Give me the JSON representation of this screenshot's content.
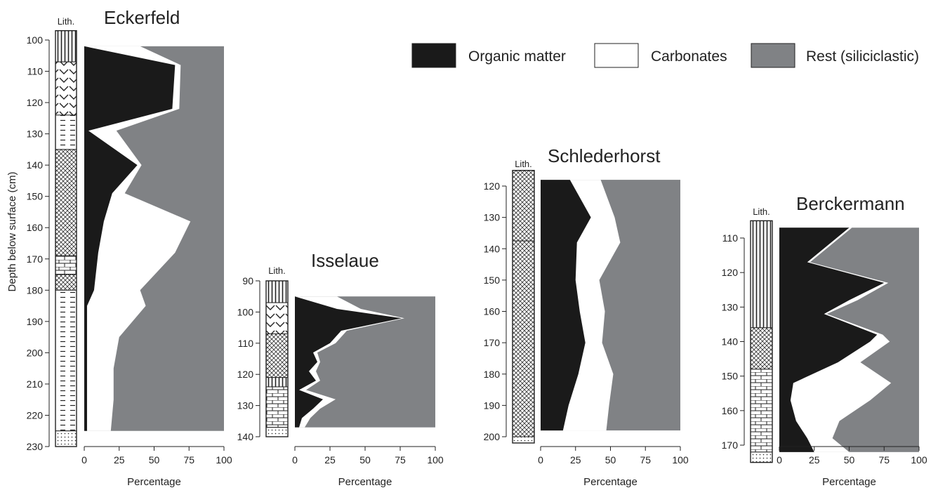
{
  "legend": {
    "items": [
      {
        "label": "Organic matter",
        "color": "#1a1a1a"
      },
      {
        "label": "Carbonates",
        "color": "#ffffff"
      },
      {
        "label": "Rest (siliciclastic)",
        "color": "#808285"
      }
    ]
  },
  "colors": {
    "organic": "#1a1a1a",
    "carbonates": "#ffffff",
    "rest": "#808285",
    "axis": "#222222"
  },
  "chart_data": [
    {
      "type": "area",
      "title": "Eckerfeld",
      "ylabel": "Depth below surface (cm)",
      "xlabel": "Percentage",
      "lith_label": "Lith.",
      "xlim": [
        0,
        100
      ],
      "ylim": [
        230,
        100
      ],
      "xticks": [
        0,
        25,
        50,
        75,
        100
      ],
      "yticks": [
        100,
        110,
        120,
        130,
        140,
        150,
        160,
        170,
        180,
        190,
        200,
        210,
        220,
        230
      ],
      "depth": [
        102,
        108,
        122,
        129,
        140,
        149,
        158,
        168,
        180,
        185,
        195,
        205,
        215,
        225
      ],
      "organic": [
        0,
        65,
        63,
        3,
        38,
        20,
        14,
        10,
        7,
        2,
        2,
        2,
        2,
        2
      ],
      "organic_plus_carbonates": [
        40,
        69,
        68,
        23,
        41,
        29,
        76,
        65,
        40,
        44,
        25,
        21,
        21,
        19
      ],
      "lithology": [
        {
          "top": 97,
          "bottom": 107,
          "pattern": "vertical"
        },
        {
          "top": 107,
          "bottom": 124,
          "pattern": "chevron"
        },
        {
          "top": 124,
          "bottom": 135,
          "pattern": "dash"
        },
        {
          "top": 135,
          "bottom": 169,
          "pattern": "crosshatch"
        },
        {
          "top": 169,
          "bottom": 175,
          "pattern": "brick"
        },
        {
          "top": 175,
          "bottom": 180,
          "pattern": "crosshatch"
        },
        {
          "top": 180,
          "bottom": 225,
          "pattern": "dash"
        },
        {
          "top": 225,
          "bottom": 230,
          "pattern": "dots"
        }
      ]
    },
    {
      "type": "area",
      "title": "Isselaue",
      "ylabel": "",
      "xlabel": "Percentage",
      "lith_label": "Lith.",
      "xlim": [
        0,
        100
      ],
      "ylim": [
        140,
        90
      ],
      "xticks": [
        0,
        25,
        50,
        75,
        100
      ],
      "yticks": [
        90,
        100,
        110,
        120,
        130,
        140
      ],
      "depth": [
        95,
        99,
        102,
        106,
        110,
        113,
        116,
        119,
        122,
        125,
        128,
        131,
        134,
        137
      ],
      "organic": [
        0,
        30,
        76,
        33,
        25,
        13,
        16,
        10,
        15,
        3,
        20,
        13,
        5,
        3
      ],
      "organic_plus_carbonates": [
        30,
        47,
        78,
        37,
        29,
        16,
        18,
        15,
        18,
        8,
        29,
        18,
        11,
        7
      ],
      "lithology": [
        {
          "top": 90,
          "bottom": 97,
          "pattern": "vertical"
        },
        {
          "top": 97,
          "bottom": 107,
          "pattern": "chevron"
        },
        {
          "top": 107,
          "bottom": 121,
          "pattern": "crosshatch"
        },
        {
          "top": 121,
          "bottom": 124,
          "pattern": "vertical"
        },
        {
          "top": 124,
          "bottom": 137,
          "pattern": "brick"
        },
        {
          "top": 137,
          "bottom": 140,
          "pattern": "dots"
        }
      ]
    },
    {
      "type": "area",
      "title": "Schlederhorst",
      "ylabel": "",
      "xlabel": "Percentage",
      "lith_label": "Lith.",
      "xlim": [
        0,
        100
      ],
      "ylim": [
        200,
        115
      ],
      "xticks": [
        0,
        25,
        50,
        75,
        100
      ],
      "yticks": [
        120,
        130,
        140,
        150,
        160,
        170,
        180,
        190,
        200
      ],
      "depth": [
        118,
        130,
        138,
        150,
        160,
        170,
        180,
        190,
        198
      ],
      "organic": [
        21,
        36,
        26,
        25,
        28,
        32,
        27,
        20,
        16
      ],
      "organic_plus_carbonates": [
        43,
        53,
        57,
        42,
        46,
        44,
        52,
        49,
        47
      ],
      "lithology": [
        {
          "top": 115,
          "bottom": 137.5,
          "pattern": "crosshatch"
        },
        {
          "top": 137.5,
          "bottom": 200,
          "pattern": "crosshatch"
        },
        {
          "top": 200,
          "bottom": 202,
          "pattern": "dots"
        }
      ]
    },
    {
      "type": "area",
      "title": "Berckermann",
      "ylabel": "",
      "xlabel": "Percentage",
      "lith_label": "Lith.",
      "xlim": [
        0,
        100
      ],
      "ylim": [
        170,
        105
      ],
      "xticks": [
        0,
        25,
        50,
        75,
        100
      ],
      "yticks": [
        110,
        120,
        130,
        140,
        150,
        160,
        170
      ],
      "depth": [
        107,
        117,
        123,
        128,
        132,
        138,
        140,
        146,
        152,
        157,
        163,
        168,
        172
      ],
      "organic": [
        50,
        20,
        75,
        50,
        32,
        70,
        65,
        42,
        10,
        8,
        12,
        20,
        25
      ],
      "organic_plus_carbonates": [
        52,
        22,
        78,
        56,
        34,
        74,
        79,
        58,
        80,
        65,
        43,
        38,
        50
      ],
      "lithology": [
        {
          "top": 105,
          "bottom": 136,
          "pattern": "vertical"
        },
        {
          "top": 136,
          "bottom": 148,
          "pattern": "crosshatch"
        },
        {
          "top": 148,
          "bottom": 172,
          "pattern": "brick"
        },
        {
          "top": 172,
          "bottom": 175,
          "pattern": "dots"
        }
      ]
    }
  ]
}
